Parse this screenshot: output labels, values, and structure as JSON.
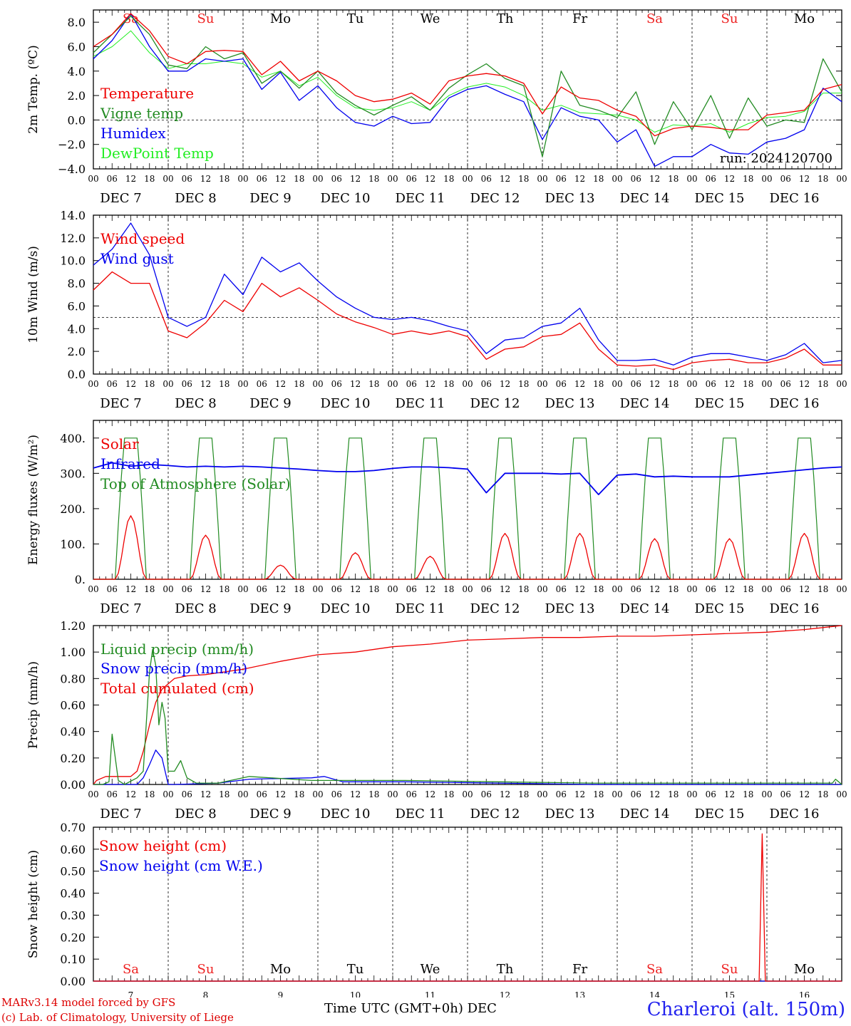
{
  "days": [
    {
      "abbr": "Sa",
      "weekend": true,
      "date": "DEC  7",
      "num": "7"
    },
    {
      "abbr": "Su",
      "weekend": true,
      "date": "DEC  8",
      "num": "8"
    },
    {
      "abbr": "Mo",
      "weekend": false,
      "date": "DEC  9",
      "num": "9"
    },
    {
      "abbr": "Tu",
      "weekend": false,
      "date": "DEC 10",
      "num": "10"
    },
    {
      "abbr": "We",
      "weekend": false,
      "date": "DEC 11",
      "num": "11"
    },
    {
      "abbr": "Th",
      "weekend": false,
      "date": "DEC 12",
      "num": "12"
    },
    {
      "abbr": "Fr",
      "weekend": false,
      "date": "DEC 13",
      "num": "13"
    },
    {
      "abbr": "Sa",
      "weekend": true,
      "date": "DEC 14",
      "num": "14"
    },
    {
      "abbr": "Su",
      "weekend": true,
      "date": "DEC 15",
      "num": "15"
    },
    {
      "abbr": "Mo",
      "weekend": false,
      "date": "DEC 16",
      "num": "16"
    }
  ],
  "hour_labels": [
    "00",
    "06",
    "12",
    "18"
  ],
  "colors": {
    "red": "#ee0000",
    "green": "#228b22",
    "blue": "#0000ee",
    "lightgreen": "#22ee22",
    "weekend": "#ee2222",
    "station": "#2222ee"
  },
  "footer": {
    "model": "MARv3.14 model forced by GFS",
    "credit": "(c) Lab. of Climatology, University of Liege",
    "xlabel": "Time UTC (GMT+0h) DEC",
    "station": "Charleroi (alt. 150m)"
  },
  "chart_data": [
    {
      "type": "line",
      "ylabel": "2m Temp. (ºC)",
      "ylim": [
        -4,
        9
      ],
      "yticks": [
        -4,
        -2,
        0,
        2,
        4,
        6,
        8
      ],
      "ytick_labels": [
        "−4.0",
        "−2.0",
        "0.0",
        "2.0",
        "4.0",
        "6.0",
        "8.0"
      ],
      "ref_line": 0,
      "show_day_abbr": true,
      "annotation": "run: 2024120700",
      "x_hours": [
        0,
        6,
        12,
        18,
        24,
        30,
        36,
        42,
        48,
        54,
        60,
        66,
        72,
        78,
        84,
        90,
        96,
        102,
        108,
        114,
        120,
        126,
        132,
        138,
        144,
        150,
        156,
        162,
        168,
        174,
        180,
        186,
        192,
        198,
        204,
        210,
        216,
        222,
        228,
        234,
        240
      ],
      "series": [
        {
          "name": "Temperature",
          "color": "red",
          "values": [
            6.0,
            7.0,
            8.7,
            7.3,
            5.2,
            4.6,
            5.6,
            5.7,
            5.6,
            3.7,
            4.8,
            3.2,
            4.0,
            3.2,
            2.0,
            1.5,
            1.7,
            2.2,
            1.3,
            3.2,
            3.6,
            3.8,
            3.6,
            3.0,
            0.5,
            2.7,
            1.8,
            1.6,
            0.8,
            0.3,
            -1.3,
            -0.7,
            -0.5,
            -0.6,
            -0.8,
            -0.8,
            0.4,
            0.6,
            0.8,
            2.5,
            2.9
          ]
        },
        {
          "name": "Vigne temp",
          "color": "green",
          "values": [
            5.5,
            7.0,
            8.5,
            7.0,
            4.5,
            4.2,
            6.0,
            5.0,
            5.5,
            3.0,
            4.0,
            2.6,
            4.0,
            2.2,
            1.2,
            0.4,
            1.2,
            1.9,
            0.8,
            2.6,
            3.7,
            4.6,
            3.4,
            2.8,
            -3.0,
            4.0,
            1.2,
            0.8,
            0.2,
            2.3,
            -2.0,
            1.5,
            -0.8,
            2.0,
            -1.5,
            1.8,
            -0.5,
            0.0,
            -0.2,
            5.0,
            2.3
          ]
        },
        {
          "name": "Humidex",
          "color": "blue",
          "values": [
            5.0,
            6.5,
            8.7,
            6.0,
            4.0,
            4.0,
            5.0,
            4.8,
            5.0,
            2.5,
            3.9,
            1.6,
            2.8,
            1.0,
            -0.2,
            -0.5,
            0.3,
            -0.3,
            -0.2,
            1.8,
            2.5,
            2.8,
            2.1,
            1.5,
            -1.6,
            1.0,
            0.3,
            0.0,
            -1.8,
            -0.8,
            -3.8,
            -3.0,
            -3.0,
            -2.0,
            -2.7,
            -2.8,
            -1.8,
            -1.5,
            -0.8,
            2.6,
            1.5
          ]
        },
        {
          "name": "DewPoint Temp",
          "color": "lightgreen",
          "values": [
            5.2,
            6.0,
            7.3,
            5.5,
            4.2,
            4.6,
            4.6,
            4.8,
            4.6,
            3.5,
            4.0,
            2.8,
            3.5,
            2.0,
            1.0,
            0.8,
            1.0,
            1.5,
            0.8,
            2.0,
            2.7,
            3.0,
            2.7,
            2.0,
            0.8,
            1.2,
            0.6,
            0.5,
            0.4,
            0.0,
            -1.0,
            -0.4,
            -0.5,
            -0.3,
            -1.0,
            -0.3,
            0.2,
            0.3,
            0.7,
            2.2,
            2.2
          ]
        }
      ]
    },
    {
      "type": "line",
      "ylabel": "10m Wind (m/s)",
      "ylim": [
        0,
        14
      ],
      "yticks": [
        0,
        2,
        4,
        6,
        8,
        10,
        12,
        14
      ],
      "ytick_labels": [
        "0.0",
        "2.0",
        "4.0",
        "6.0",
        "8.0",
        "10.0",
        "12.0",
        "14.0"
      ],
      "ref_line": 5,
      "show_day_abbr": false,
      "x_hours": [
        0,
        6,
        12,
        18,
        24,
        30,
        36,
        42,
        48,
        54,
        60,
        66,
        72,
        78,
        84,
        90,
        96,
        102,
        108,
        114,
        120,
        126,
        132,
        138,
        144,
        150,
        156,
        162,
        168,
        174,
        180,
        186,
        192,
        198,
        204,
        210,
        216,
        222,
        228,
        234,
        240
      ],
      "series": [
        {
          "name": "Wind speed",
          "color": "red",
          "values": [
            7.4,
            9.0,
            8.0,
            8.0,
            3.8,
            3.2,
            4.5,
            6.5,
            5.5,
            8.0,
            6.8,
            7.6,
            6.5,
            5.3,
            4.6,
            4.1,
            3.5,
            3.8,
            3.5,
            3.8,
            3.3,
            1.3,
            2.2,
            2.4,
            3.3,
            3.5,
            4.5,
            2.2,
            0.8,
            0.7,
            0.8,
            0.4,
            1.0,
            1.2,
            1.3,
            1.0,
            1.0,
            1.4,
            2.2,
            0.8,
            0.8
          ]
        },
        {
          "name": "Wind gust",
          "color": "blue",
          "values": [
            9.6,
            11.0,
            13.3,
            10.5,
            5.0,
            4.2,
            5.0,
            8.8,
            7.0,
            10.3,
            9.0,
            9.8,
            8.2,
            6.8,
            5.8,
            5.0,
            4.8,
            5.0,
            4.7,
            4.2,
            3.8,
            1.8,
            3.0,
            3.2,
            4.2,
            4.5,
            5.8,
            3.0,
            1.2,
            1.2,
            1.3,
            0.8,
            1.5,
            1.8,
            1.8,
            1.5,
            1.2,
            1.7,
            2.7,
            1.0,
            1.2
          ]
        }
      ]
    },
    {
      "type": "line",
      "ylabel": "Energy fluxes (W/m²)",
      "ylim": [
        0,
        450
      ],
      "yticks": [
        0,
        100,
        200,
        300,
        400
      ],
      "ytick_labels": [
        "0.",
        "100.",
        "200.",
        "300.",
        "400."
      ],
      "show_day_abbr": false,
      "solar_peaks": [
        180,
        125,
        40,
        75,
        65,
        130,
        130,
        115,
        115,
        130
      ],
      "toa_peak": 400,
      "infrared": {
        "x_hours": [
          0,
          6,
          12,
          18,
          24,
          30,
          36,
          42,
          48,
          54,
          60,
          66,
          72,
          78,
          84,
          90,
          96,
          102,
          108,
          114,
          120,
          126,
          132,
          138,
          144,
          150,
          156,
          162,
          168,
          174,
          180,
          186,
          192,
          198,
          204,
          210,
          216,
          222,
          228,
          234,
          240
        ],
        "values": [
          315,
          330,
          320,
          325,
          322,
          318,
          320,
          318,
          320,
          318,
          315,
          312,
          308,
          305,
          305,
          308,
          314,
          318,
          318,
          316,
          312,
          245,
          300,
          300,
          300,
          298,
          300,
          240,
          295,
          298,
          290,
          292,
          290,
          290,
          290,
          295,
          300,
          305,
          310,
          315,
          318
        ]
      },
      "series": [
        {
          "name": "Solar",
          "color": "red"
        },
        {
          "name": "Infrared",
          "color": "blue"
        },
        {
          "name": "Top of Atmosphere (Solar)",
          "color": "green"
        }
      ]
    },
    {
      "type": "line",
      "ylabel": "Precip (mm/h)",
      "ylim": [
        0,
        1.2
      ],
      "yticks": [
        0,
        0.2,
        0.4,
        0.6,
        0.8,
        1.0,
        1.2
      ],
      "ytick_labels": [
        "0.00",
        "0.20",
        "0.40",
        "0.60",
        "0.80",
        "1.00",
        "1.20"
      ],
      "show_day_abbr": false,
      "series": [
        {
          "name": "Liquid precip (mm/h)",
          "color": "green",
          "x_hours": [
            0,
            3,
            5,
            6,
            8,
            10,
            14,
            16,
            18,
            19,
            20,
            21,
            22,
            23,
            24,
            26,
            28,
            30,
            33,
            40,
            50,
            70,
            100,
            130,
            160,
            190,
            220,
            237,
            238,
            239,
            240
          ],
          "values": [
            0,
            0,
            0.02,
            0.38,
            0.03,
            0.0,
            0.05,
            0.1,
            0.85,
            1.02,
            0.9,
            0.45,
            0.62,
            0.5,
            0.1,
            0.1,
            0.18,
            0.05,
            0.01,
            0.01,
            0.06,
            0.03,
            0.03,
            0.02,
            0.01,
            0.01,
            0.01,
            0.01,
            0.04,
            0.02,
            0.0
          ]
        },
        {
          "name": "Snow precip (mm/h)",
          "color": "blue",
          "x_hours": [
            0,
            14,
            16,
            18,
            20,
            22,
            24,
            26,
            40,
            50,
            70,
            74,
            80,
            100,
            130,
            160,
            190,
            220,
            240
          ],
          "values": [
            0,
            0,
            0.05,
            0.15,
            0.26,
            0.2,
            0.0,
            0.0,
            0.01,
            0.04,
            0.05,
            0.06,
            0.02,
            0.02,
            0.01,
            0.0,
            0.0,
            0.0,
            0.0
          ]
        },
        {
          "name": "Total cumulated (cm)",
          "color": "red",
          "x_hours": [
            0,
            1,
            4,
            12,
            14,
            16,
            18,
            20,
            22,
            24,
            26,
            30,
            36,
            42,
            48,
            60,
            72,
            84,
            96,
            108,
            120,
            132,
            144,
            156,
            168,
            180,
            192,
            204,
            216,
            228,
            240
          ],
          "values": [
            0,
            0.03,
            0.06,
            0.06,
            0.1,
            0.25,
            0.45,
            0.62,
            0.72,
            0.76,
            0.8,
            0.82,
            0.83,
            0.85,
            0.87,
            0.93,
            0.98,
            1.0,
            1.04,
            1.06,
            1.09,
            1.1,
            1.11,
            1.11,
            1.12,
            1.12,
            1.13,
            1.14,
            1.15,
            1.17,
            1.2
          ]
        }
      ]
    },
    {
      "type": "line",
      "ylabel": "Snow height (cm)",
      "ylim": [
        0,
        0.7
      ],
      "yticks": [
        0,
        0.1,
        0.2,
        0.3,
        0.4,
        0.5,
        0.6,
        0.7
      ],
      "ytick_labels": [
        "0.00",
        "0.10",
        "0.20",
        "0.30",
        "0.40",
        "0.50",
        "0.60",
        "0.70"
      ],
      "show_day_abbr": true,
      "series": [
        {
          "name": "Snow height (cm)",
          "color": "red",
          "x_hours": [
            0,
            213.5,
            214.5,
            215.5,
            240
          ],
          "values": [
            0,
            0,
            0.67,
            0,
            0
          ]
        },
        {
          "name": "Snow height (cm W.E.)",
          "color": "blue",
          "x_hours": [
            0,
            240
          ],
          "values": [
            0,
            0
          ]
        }
      ]
    }
  ]
}
